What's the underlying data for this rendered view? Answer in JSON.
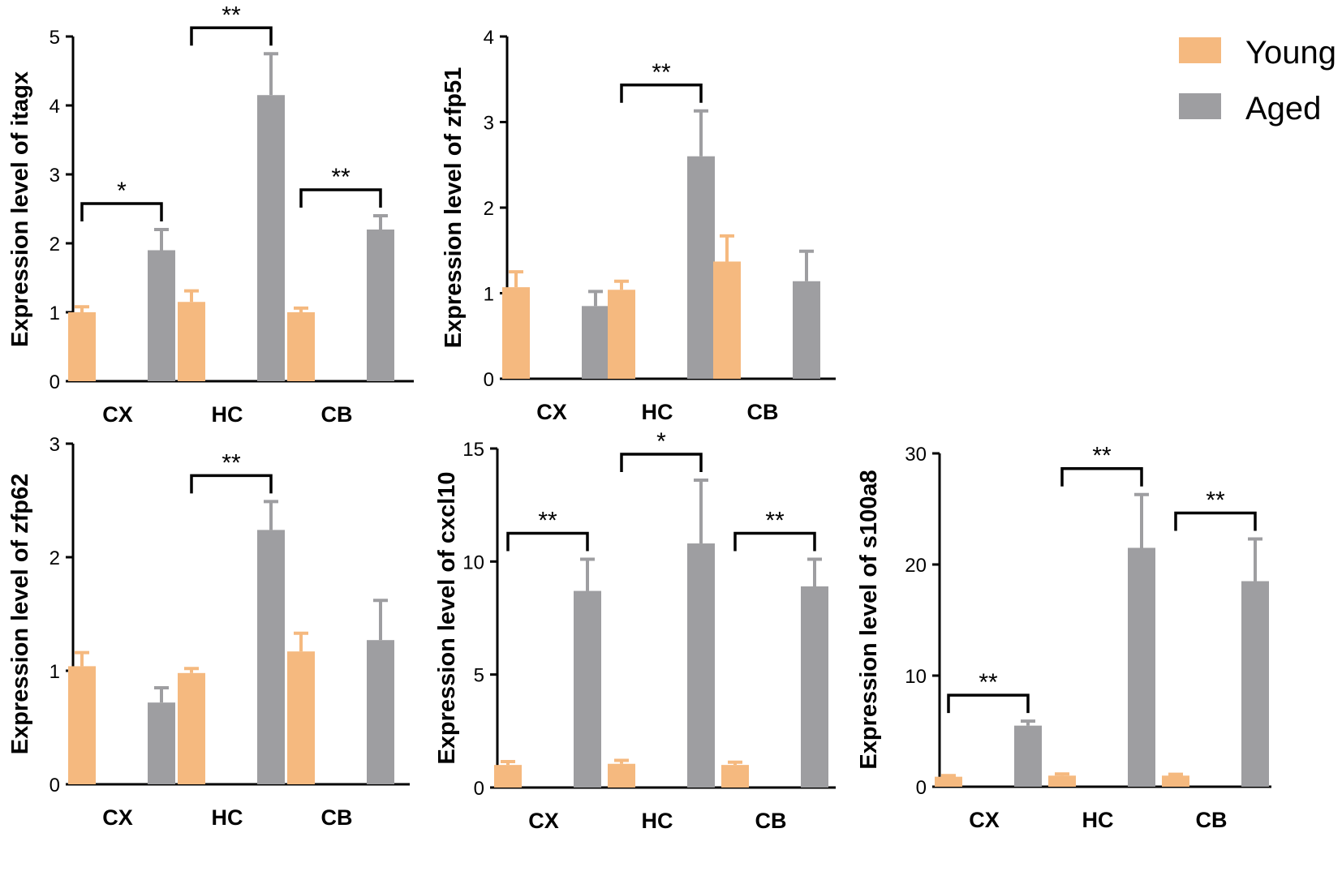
{
  "colors": {
    "young": "#F5B97F",
    "aged": "#9E9EA1",
    "axis": "#000000"
  },
  "legend": [
    {
      "label": "Young",
      "color": "#F5B97F"
    },
    {
      "label": "Aged",
      "color": "#9E9EA1"
    }
  ],
  "chart_data": [
    {
      "id": "itagx",
      "type": "bar",
      "ylabel": "Expression level of itagx",
      "ylim": [
        0,
        5
      ],
      "yticks": [
        "0",
        "1",
        "2",
        "3",
        "4",
        "5"
      ],
      "categories": [
        "CX",
        "HC",
        "CB"
      ],
      "series": [
        {
          "name": "Young",
          "values": [
            1.0,
            1.15,
            1.0
          ],
          "errors": [
            0.08,
            0.16,
            0.06
          ]
        },
        {
          "name": "Aged",
          "values": [
            1.9,
            4.15,
            2.2
          ],
          "errors": [
            0.3,
            0.6,
            0.2
          ]
        }
      ],
      "significance": [
        "*",
        "**",
        "**"
      ]
    },
    {
      "id": "zfp51",
      "type": "bar",
      "ylabel": "Expression level of zfp51",
      "ylim": [
        0,
        4
      ],
      "yticks": [
        "0",
        "1",
        "2",
        "3",
        "4"
      ],
      "categories": [
        "CX",
        "HC",
        "CB"
      ],
      "series": [
        {
          "name": "Young",
          "values": [
            1.07,
            1.04,
            1.37
          ],
          "errors": [
            0.18,
            0.1,
            0.3
          ]
        },
        {
          "name": "Aged",
          "values": [
            0.85,
            2.6,
            1.14
          ],
          "errors": [
            0.17,
            0.53,
            0.35
          ]
        }
      ],
      "significance": [
        null,
        "**",
        null
      ]
    },
    {
      "id": "zfp62",
      "type": "bar",
      "ylabel": "Expression level of zfp62",
      "ylim": [
        0,
        3
      ],
      "yticks": [
        "0",
        "1",
        "2",
        "3"
      ],
      "categories": [
        "CX",
        "HC",
        "CB"
      ],
      "series": [
        {
          "name": "Young",
          "values": [
            1.04,
            0.98,
            1.17
          ],
          "errors": [
            0.12,
            0.04,
            0.16
          ]
        },
        {
          "name": "Aged",
          "values": [
            0.72,
            2.24,
            1.27
          ],
          "errors": [
            0.13,
            0.25,
            0.35
          ]
        }
      ],
      "significance": [
        null,
        "**",
        null
      ]
    },
    {
      "id": "cxcl10",
      "type": "bar",
      "ylabel": "Expression level of cxcl10",
      "ylim": [
        0,
        15
      ],
      "yticks": [
        "0",
        "5",
        "10",
        "15"
      ],
      "categories": [
        "CX",
        "HC",
        "CB"
      ],
      "series": [
        {
          "name": "Young",
          "values": [
            1.0,
            1.05,
            1.0
          ],
          "errors": [
            0.15,
            0.15,
            0.12
          ]
        },
        {
          "name": "Aged",
          "values": [
            8.7,
            10.8,
            8.9
          ],
          "errors": [
            1.4,
            2.8,
            1.2
          ]
        }
      ],
      "significance": [
        "**",
        "*",
        "**"
      ]
    },
    {
      "id": "s100a8",
      "type": "bar",
      "ylabel": "Expression level of s100a8",
      "ylim": [
        0,
        30
      ],
      "yticks": [
        "0",
        "10",
        "20",
        "30"
      ],
      "categories": [
        "CX",
        "HC",
        "CB"
      ],
      "series": [
        {
          "name": "Young",
          "values": [
            0.9,
            1.0,
            1.0
          ],
          "errors": [
            0.1,
            0.15,
            0.12
          ]
        },
        {
          "name": "Aged",
          "values": [
            5.5,
            21.5,
            18.5
          ],
          "errors": [
            0.4,
            4.8,
            3.8
          ]
        }
      ],
      "significance": [
        "**",
        "**",
        "**"
      ]
    }
  ]
}
